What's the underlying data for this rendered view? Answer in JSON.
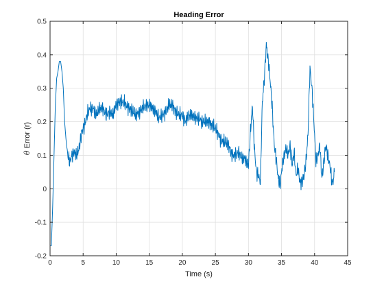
{
  "chart_data": {
    "type": "line",
    "title": "Heading Error",
    "xlabel": "Time (s)",
    "ylabel_symbol": "θ",
    "ylabel_text": " Error (r)",
    "xlim": [
      0,
      45
    ],
    "ylim": [
      -0.2,
      0.5
    ],
    "xticks": [
      0,
      5,
      10,
      15,
      20,
      25,
      30,
      35,
      40,
      45
    ],
    "xtick_labels": [
      "0",
      "5",
      "10",
      "15",
      "20",
      "25",
      "30",
      "35",
      "40",
      "45"
    ],
    "yticks": [
      -0.2,
      -0.1,
      0,
      0.1,
      0.2,
      0.3,
      0.4,
      0.5
    ],
    "ytick_labels": [
      "-0.2",
      "-0.1",
      "0",
      "0.1",
      "0.2",
      "0.3",
      "0.4",
      "0.5"
    ],
    "grid": true,
    "legend": "none",
    "series": [
      {
        "color": "#0072BD",
        "x": [
          0.0,
          0.2,
          0.4,
          0.6,
          0.8,
          1.0,
          1.2,
          1.4,
          1.6,
          1.8,
          2.0,
          2.2,
          2.4,
          2.6,
          2.8,
          3.0,
          3.3,
          3.6,
          4.0,
          4.4,
          4.8,
          5.2,
          5.6,
          6.0,
          6.5,
          7.0,
          7.5,
          8.0,
          8.5,
          9.0,
          9.5,
          10.0,
          10.5,
          11.0,
          11.5,
          12.0,
          12.5,
          13.0,
          13.5,
          14.0,
          14.5,
          15.0,
          15.5,
          16.0,
          16.5,
          17.0,
          17.5,
          18.0,
          18.5,
          19.0,
          19.5,
          20.0,
          20.5,
          21.0,
          21.5,
          22.0,
          22.5,
          23.0,
          23.5,
          24.0,
          24.5,
          25.0,
          25.5,
          26.0,
          26.5,
          27.0,
          27.5,
          28.0,
          28.5,
          29.0,
          29.5,
          30.0,
          30.3,
          30.6,
          30.9,
          31.2,
          31.5,
          31.8,
          32.1,
          32.4,
          32.7,
          33.0,
          33.3,
          33.6,
          33.9,
          34.2,
          34.5,
          34.8,
          35.1,
          35.4,
          35.7,
          36.0,
          36.3,
          36.6,
          36.9,
          37.2,
          37.5,
          37.8,
          38.1,
          38.4,
          38.7,
          39.0,
          39.3,
          39.6,
          39.9,
          40.2,
          40.5,
          40.8,
          41.1,
          41.4,
          41.7,
          42.0,
          42.2,
          42.4,
          42.6,
          42.8,
          43.0
        ],
        "y": [
          -0.17,
          -0.17,
          -0.05,
          0.1,
          0.25,
          0.33,
          0.35,
          0.38,
          0.38,
          0.35,
          0.3,
          0.2,
          0.15,
          0.11,
          0.09,
          0.08,
          0.1,
          0.11,
          0.1,
          0.12,
          0.17,
          0.19,
          0.22,
          0.24,
          0.24,
          0.22,
          0.24,
          0.24,
          0.22,
          0.23,
          0.22,
          0.25,
          0.26,
          0.26,
          0.25,
          0.24,
          0.23,
          0.22,
          0.23,
          0.24,
          0.25,
          0.25,
          0.24,
          0.23,
          0.21,
          0.22,
          0.23,
          0.25,
          0.25,
          0.23,
          0.22,
          0.22,
          0.2,
          0.22,
          0.22,
          0.21,
          0.21,
          0.2,
          0.2,
          0.2,
          0.19,
          0.18,
          0.16,
          0.14,
          0.14,
          0.13,
          0.1,
          0.1,
          0.11,
          0.09,
          0.09,
          0.07,
          0.17,
          0.25,
          0.12,
          0.05,
          0.04,
          0.02,
          0.26,
          0.33,
          0.43,
          0.38,
          0.32,
          0.24,
          0.13,
          0.09,
          0.03,
          0.01,
          0.07,
          0.1,
          0.12,
          0.1,
          0.13,
          0.07,
          0.11,
          0.04,
          0.06,
          0.02,
          0.02,
          0.04,
          0.08,
          0.16,
          0.36,
          0.3,
          0.2,
          0.08,
          0.1,
          0.13,
          0.03,
          0.08,
          0.13,
          0.1,
          0.08,
          0.06,
          0.02,
          0.02,
          0.05
        ]
      }
    ]
  }
}
